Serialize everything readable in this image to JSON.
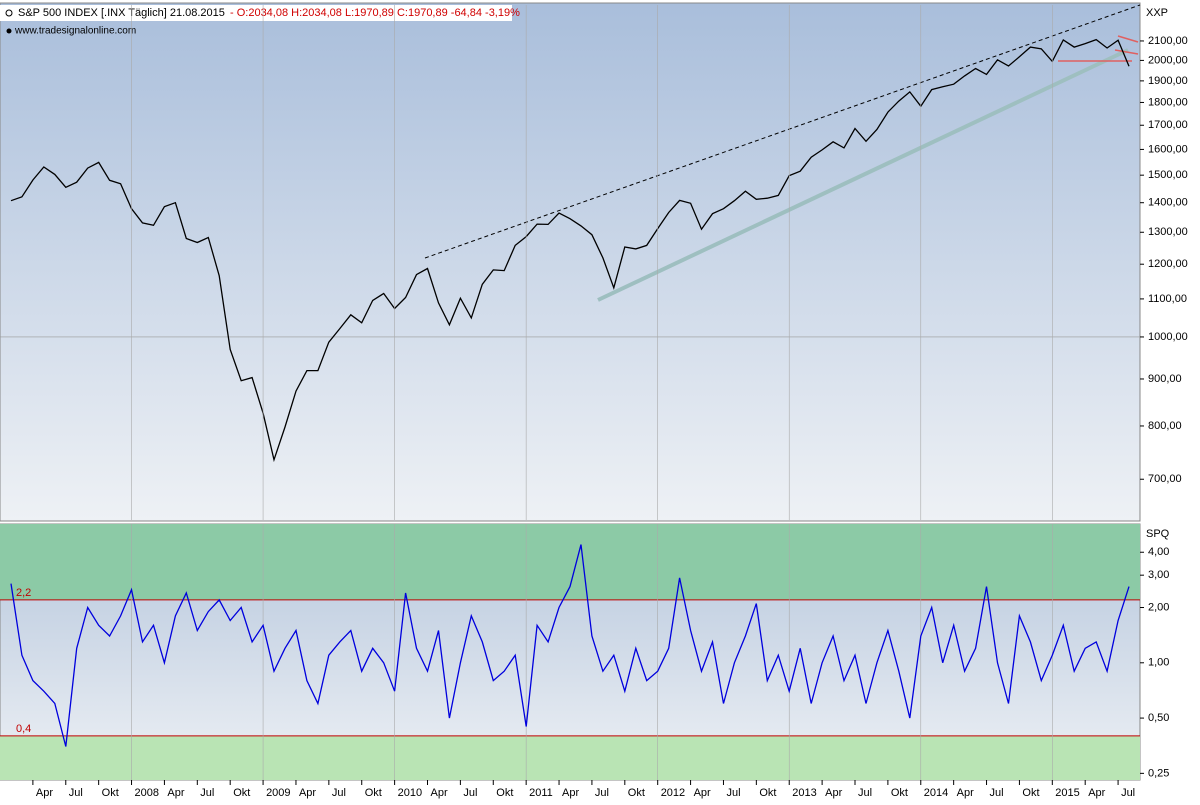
{
  "chart_data": [
    {
      "type": "line",
      "title": "S&P 500 INDEX [.INX  Täglich] 21.08.2015",
      "quote": "- O:2034,08 H:2034,08 L:1970,89 C:1970,89 -64,84 -3,19%",
      "source": "www.tradesignalonline.com",
      "axis_label": "XXP",
      "log": true,
      "xlim": [
        "2007-01",
        "2015-09"
      ],
      "ylim": [
        632,
        2298
      ],
      "yticks": [
        {
          "value": 700,
          "label": "700,00"
        },
        {
          "value": 800,
          "label": "800,00"
        },
        {
          "value": 900,
          "label": "900,00"
        },
        {
          "value": 1000,
          "label": "1000,00"
        },
        {
          "value": 1100,
          "label": "1100,00"
        },
        {
          "value": 1200,
          "label": "1200,00"
        },
        {
          "value": 1300,
          "label": "1300,00"
        },
        {
          "value": 1400,
          "label": "1400,00"
        },
        {
          "value": 1500,
          "label": "1500,00"
        },
        {
          "value": 1600,
          "label": "1600,00"
        },
        {
          "value": 1700,
          "label": "1700,00"
        },
        {
          "value": 1800,
          "label": "1800,00"
        },
        {
          "value": 1900,
          "label": "1900,00"
        },
        {
          "value": 2000,
          "label": "2000,00"
        },
        {
          "value": 2100,
          "label": "2100,00"
        }
      ],
      "x": [
        "2007-02",
        "2007-03",
        "2007-04",
        "2007-05",
        "2007-06",
        "2007-07",
        "2007-08",
        "2007-09",
        "2007-10",
        "2007-11",
        "2007-12",
        "2008-01",
        "2008-02",
        "2008-03",
        "2008-04",
        "2008-05",
        "2008-06",
        "2008-07",
        "2008-08",
        "2008-09",
        "2008-10",
        "2008-11",
        "2008-12",
        "2009-01",
        "2009-02",
        "2009-03",
        "2009-04",
        "2009-05",
        "2009-06",
        "2009-07",
        "2009-08",
        "2009-09",
        "2009-10",
        "2009-11",
        "2009-12",
        "2010-01",
        "2010-02",
        "2010-03",
        "2010-04",
        "2010-05",
        "2010-06",
        "2010-07",
        "2010-08",
        "2010-09",
        "2010-10",
        "2010-11",
        "2010-12",
        "2011-01",
        "2011-02",
        "2011-03",
        "2011-04",
        "2011-05",
        "2011-06",
        "2011-07",
        "2011-08",
        "2011-09",
        "2011-10",
        "2011-11",
        "2011-12",
        "2012-01",
        "2012-02",
        "2012-03",
        "2012-04",
        "2012-05",
        "2012-06",
        "2012-07",
        "2012-08",
        "2012-09",
        "2012-10",
        "2012-11",
        "2012-12",
        "2013-01",
        "2013-02",
        "2013-03",
        "2013-04",
        "2013-05",
        "2013-06",
        "2013-07",
        "2013-08",
        "2013-09",
        "2013-10",
        "2013-11",
        "2013-12",
        "2014-01",
        "2014-02",
        "2014-03",
        "2014-04",
        "2014-05",
        "2014-06",
        "2014-07",
        "2014-08",
        "2014-09",
        "2014-10",
        "2014-11",
        "2014-12",
        "2015-01",
        "2015-02",
        "2015-03",
        "2015-04",
        "2015-05",
        "2015-06",
        "2015-07",
        "2015-08"
      ],
      "series": [
        {
          "color": "#000000",
          "values": [
            1407,
            1421,
            1482,
            1531,
            1503,
            1455,
            1474,
            1527,
            1549,
            1481,
            1468,
            1379,
            1331,
            1323,
            1386,
            1400,
            1280,
            1267,
            1283,
            1166,
            969,
            896,
            903,
            826,
            735,
            798,
            873,
            919,
            919,
            987,
            1021,
            1057,
            1036,
            1096,
            1115,
            1074,
            1104,
            1169,
            1187,
            1089,
            1031,
            1102,
            1049,
            1141,
            1183,
            1181,
            1258,
            1286,
            1327,
            1326,
            1364,
            1345,
            1321,
            1292,
            1219,
            1131,
            1253,
            1247,
            1258,
            1312,
            1366,
            1408,
            1398,
            1310,
            1362,
            1379,
            1407,
            1441,
            1412,
            1416,
            1426,
            1498,
            1515,
            1569,
            1598,
            1631,
            1606,
            1686,
            1633,
            1682,
            1757,
            1806,
            1848,
            1783,
            1859,
            1872,
            1884,
            1924,
            1960,
            1931,
            2003,
            1972,
            2018,
            2068,
            2059,
            1995,
            2105,
            2068,
            2086,
            2107,
            2063,
            2104,
            1971
          ]
        }
      ]
    },
    {
      "type": "line",
      "axis_label": "SPQ",
      "log": true,
      "xlim": [
        "2007-01",
        "2015-09"
      ],
      "ylim": [
        0.23,
        5.7
      ],
      "yticks": [
        {
          "value": 0.25,
          "label": "0,25"
        },
        {
          "value": 0.5,
          "label": "0,50"
        },
        {
          "value": 1,
          "label": "1,00"
        },
        {
          "value": 2,
          "label": "2,00"
        },
        {
          "value": 3,
          "label": "3,00"
        },
        {
          "value": 4,
          "label": "4,00"
        }
      ],
      "levels": [
        {
          "value": 2.2,
          "label": "2,2"
        },
        {
          "value": 0.4,
          "label": "0,4"
        }
      ],
      "xticks": [
        {
          "value": "2007-04",
          "label": "Apr"
        },
        {
          "value": "2007-07",
          "label": "Jul"
        },
        {
          "value": "2007-10",
          "label": "Okt"
        },
        {
          "value": "2008-01",
          "label": "2008"
        },
        {
          "value": "2008-04",
          "label": "Apr"
        },
        {
          "value": "2008-07",
          "label": "Jul"
        },
        {
          "value": "2008-10",
          "label": "Okt"
        },
        {
          "value": "2009-01",
          "label": "2009"
        },
        {
          "value": "2009-04",
          "label": "Apr"
        },
        {
          "value": "2009-07",
          "label": "Jul"
        },
        {
          "value": "2009-10",
          "label": "Okt"
        },
        {
          "value": "2010-01",
          "label": "2010"
        },
        {
          "value": "2010-04",
          "label": "Apr"
        },
        {
          "value": "2010-07",
          "label": "Jul"
        },
        {
          "value": "2010-10",
          "label": "Okt"
        },
        {
          "value": "2011-01",
          "label": "2011"
        },
        {
          "value": "2011-04",
          "label": "Apr"
        },
        {
          "value": "2011-07",
          "label": "Jul"
        },
        {
          "value": "2011-10",
          "label": "Okt"
        },
        {
          "value": "2012-01",
          "label": "2012"
        },
        {
          "value": "2012-04",
          "label": "Apr"
        },
        {
          "value": "2012-07",
          "label": "Jul"
        },
        {
          "value": "2012-10",
          "label": "Okt"
        },
        {
          "value": "2013-01",
          "label": "2013"
        },
        {
          "value": "2013-04",
          "label": "Apr"
        },
        {
          "value": "2013-07",
          "label": "Jul"
        },
        {
          "value": "2013-10",
          "label": "Okt"
        },
        {
          "value": "2014-01",
          "label": "2014"
        },
        {
          "value": "2014-04",
          "label": "Apr"
        },
        {
          "value": "2014-07",
          "label": "Jul"
        },
        {
          "value": "2014-10",
          "label": "Okt"
        },
        {
          "value": "2015-01",
          "label": "2015"
        },
        {
          "value": "2015-04",
          "label": "Apr"
        },
        {
          "value": "2015-07",
          "label": "Jul"
        }
      ],
      "x": [
        "2007-02",
        "2007-03",
        "2007-04",
        "2007-05",
        "2007-06",
        "2007-07",
        "2007-08",
        "2007-09",
        "2007-10",
        "2007-11",
        "2007-12",
        "2008-01",
        "2008-02",
        "2008-03",
        "2008-04",
        "2008-05",
        "2008-06",
        "2008-07",
        "2008-08",
        "2008-09",
        "2008-10",
        "2008-11",
        "2008-12",
        "2009-01",
        "2009-02",
        "2009-03",
        "2009-04",
        "2009-05",
        "2009-06",
        "2009-07",
        "2009-08",
        "2009-09",
        "2009-10",
        "2009-11",
        "2009-12",
        "2010-01",
        "2010-02",
        "2010-03",
        "2010-04",
        "2010-05",
        "2010-06",
        "2010-07",
        "2010-08",
        "2010-09",
        "2010-10",
        "2010-11",
        "2010-12",
        "2011-01",
        "2011-02",
        "2011-03",
        "2011-04",
        "2011-05",
        "2011-06",
        "2011-07",
        "2011-08",
        "2011-09",
        "2011-10",
        "2011-11",
        "2011-12",
        "2012-01",
        "2012-02",
        "2012-03",
        "2012-04",
        "2012-05",
        "2012-06",
        "2012-07",
        "2012-08",
        "2012-09",
        "2012-10",
        "2012-11",
        "2012-12",
        "2013-01",
        "2013-02",
        "2013-03",
        "2013-04",
        "2013-05",
        "2013-06",
        "2013-07",
        "2013-08",
        "2013-09",
        "2013-10",
        "2013-11",
        "2013-12",
        "2014-01",
        "2014-02",
        "2014-03",
        "2014-04",
        "2014-05",
        "2014-06",
        "2014-07",
        "2014-08",
        "2014-09",
        "2014-10",
        "2014-11",
        "2014-12",
        "2015-01",
        "2015-02",
        "2015-03",
        "2015-04",
        "2015-05",
        "2015-06",
        "2015-07",
        "2015-08"
      ],
      "series": [
        {
          "color": "#0000dd",
          "values": [
            2.7,
            1.1,
            0.8,
            0.7,
            0.6,
            0.35,
            1.2,
            2.0,
            1.6,
            1.4,
            1.8,
            2.5,
            1.3,
            1.6,
            1.0,
            1.8,
            2.4,
            1.5,
            1.9,
            2.2,
            1.7,
            2.0,
            1.3,
            1.6,
            0.9,
            1.2,
            1.5,
            0.8,
            0.6,
            1.1,
            1.3,
            1.5,
            0.9,
            1.2,
            1.0,
            0.7,
            2.4,
            1.2,
            0.9,
            1.5,
            0.5,
            1.0,
            1.8,
            1.3,
            0.8,
            0.9,
            1.1,
            0.45,
            1.6,
            1.3,
            2.0,
            2.6,
            4.4,
            1.4,
            0.9,
            1.1,
            0.7,
            1.2,
            0.8,
            0.9,
            1.2,
            2.9,
            1.5,
            0.9,
            1.3,
            0.6,
            1.0,
            1.4,
            2.1,
            0.8,
            1.1,
            0.7,
            1.2,
            0.6,
            1.0,
            1.4,
            0.8,
            1.1,
            0.6,
            1.0,
            1.5,
            0.9,
            0.5,
            1.4,
            2.0,
            1.0,
            1.6,
            0.9,
            1.2,
            2.6,
            1.0,
            0.6,
            1.8,
            1.3,
            0.8,
            1.1,
            1.6,
            0.9,
            1.2,
            1.3,
            0.9,
            1.7,
            2.6
          ]
        }
      ]
    }
  ]
}
